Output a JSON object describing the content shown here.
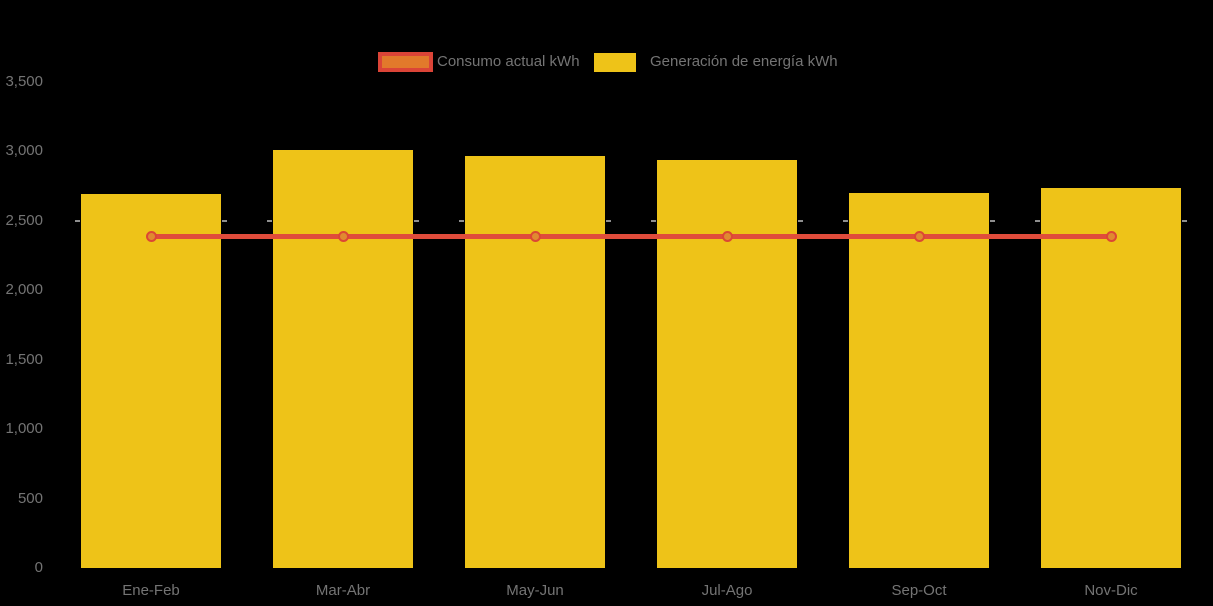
{
  "chart_data": {
    "type": "bar",
    "subtype": "combo-bar-line",
    "title": "",
    "categories": [
      "Ene-Feb",
      "Mar-Abr",
      "May-Jun",
      "Jul-Ago",
      "Sep-Oct",
      "Nov-Dic"
    ],
    "series": [
      {
        "name": "Consumo actual kWh",
        "type": "line",
        "color": "#E04C3B",
        "marker_fill": "#E08A30",
        "marker_stroke": "#DC4734",
        "values": [
          2390,
          2390,
          2390,
          2390,
          2390,
          2390
        ]
      },
      {
        "name": "Generación de energía kWh",
        "type": "bar",
        "color": "#EEC318",
        "values": [
          2690,
          3010,
          2970,
          2940,
          2700,
          2740
        ]
      }
    ],
    "xlabel": "",
    "ylabel": "",
    "ylim": [
      0,
      3500
    ],
    "yticks": [
      0,
      500,
      1000,
      1500,
      2000,
      2500,
      3000,
      3500
    ],
    "ytick_labels": [
      "0",
      "500",
      "1,000",
      "1,500",
      "2,000",
      "2,500",
      "3,000",
      "3,500"
    ],
    "grid": "off",
    "grid_artifact_level": 2500,
    "legend_position": "top",
    "background": "#000000",
    "text_color": "#747474"
  },
  "legend": {
    "items": [
      {
        "label": "Consumo actual kWh",
        "swatch_fill": "#E2792B",
        "swatch_border": "#DB4437"
      },
      {
        "label": "Generación de energía kWh",
        "swatch_fill": "#EEC318",
        "swatch_border": ""
      }
    ]
  }
}
